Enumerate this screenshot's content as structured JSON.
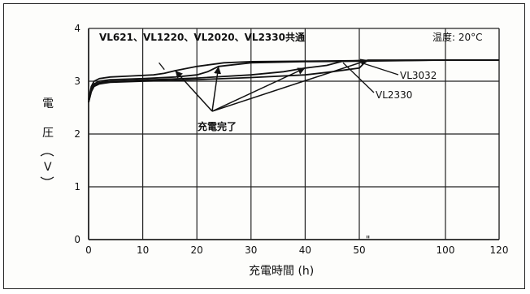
{
  "chart_data": {
    "type": "line",
    "title": "VL621、VL1220、VL2020、VL2330共通",
    "condition": "温度: 20°C",
    "xlabel": "充電時間 (h)",
    "ylabel": [
      "電",
      "圧",
      "V"
    ],
    "xlim": [
      0,
      120
    ],
    "ylim": [
      0,
      4
    ],
    "x_ticks": [
      "0",
      "10",
      "20",
      "30",
      "40",
      "50",
      "100",
      "120"
    ],
    "y_ticks": [
      "0",
      "1",
      "2",
      "3",
      "4"
    ],
    "x_break": "40→100 compressed axis (50 → 100)",
    "grid": true,
    "series": [
      {
        "name": "VL621",
        "x": [
          0,
          0.5,
          1,
          2,
          4,
          8,
          12,
          14,
          16,
          20,
          25,
          30,
          40,
          50,
          100,
          120
        ],
        "y": [
          2.65,
          2.9,
          3.0,
          3.05,
          3.08,
          3.1,
          3.12,
          3.15,
          3.2,
          3.28,
          3.35,
          3.37,
          3.38,
          3.39,
          3.4,
          3.4
        ]
      },
      {
        "name": "VL1220",
        "x": [
          0,
          0.5,
          1,
          2,
          4,
          10,
          16,
          20,
          22,
          24,
          30,
          40,
          50,
          100,
          120
        ],
        "y": [
          2.6,
          2.85,
          2.95,
          3.0,
          3.03,
          3.05,
          3.08,
          3.12,
          3.18,
          3.28,
          3.35,
          3.37,
          3.38,
          3.4,
          3.4
        ]
      },
      {
        "name": "VL2330",
        "x": [
          0,
          0.5,
          1,
          2,
          4,
          10,
          20,
          30,
          36,
          40,
          44,
          47,
          50,
          100,
          120
        ],
        "y": [
          2.6,
          2.82,
          2.92,
          2.97,
          3.0,
          3.02,
          3.06,
          3.12,
          3.18,
          3.25,
          3.3,
          3.38,
          3.39,
          3.4,
          3.4
        ]
      },
      {
        "name": "VL3032",
        "x": [
          0,
          0.5,
          1,
          2,
          4,
          10,
          20,
          30,
          40,
          45,
          50,
          53,
          55,
          100,
          120
        ],
        "y": [
          2.6,
          2.8,
          2.9,
          2.95,
          2.98,
          3.0,
          3.03,
          3.07,
          3.12,
          3.18,
          3.25,
          3.35,
          3.4,
          3.4,
          3.4
        ]
      }
    ],
    "annotations": [
      {
        "text": "充電完了"
      },
      {
        "text": "VL3032"
      },
      {
        "text": "VL2330"
      }
    ]
  }
}
